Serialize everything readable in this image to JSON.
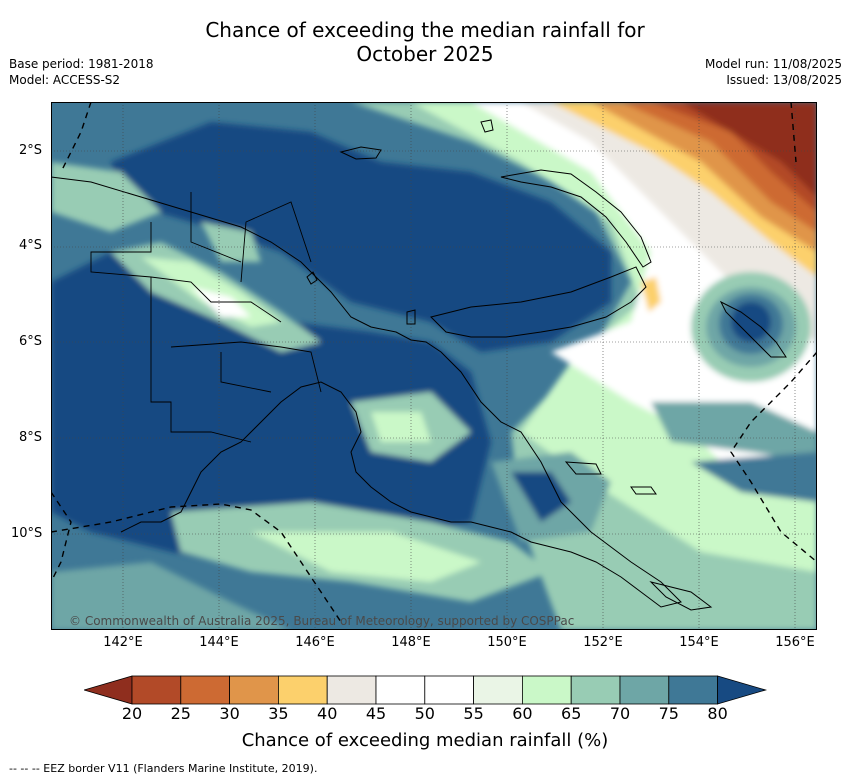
{
  "title_line1": "Chance of exceeding the median rainfall for",
  "title_line2": "October 2025",
  "meta_left": {
    "base_period": "Base period: 1981-2018",
    "model": "Model: ACCESS-S2"
  },
  "meta_right": {
    "model_run": "Model run: 11/08/2025",
    "issued": "Issued: 13/08/2025"
  },
  "lat_labels": [
    "2°S",
    "4°S",
    "6°S",
    "8°S",
    "10°S"
  ],
  "lon_labels": [
    "142°E",
    "144°E",
    "146°E",
    "148°E",
    "150°E",
    "152°E",
    "154°E",
    "156°E"
  ],
  "copyright": "© Commonwealth of Australia 2025, Bureau of Meteorology, supported by COSPPac",
  "colorbar": {
    "ticks": [
      "20",
      "25",
      "30",
      "35",
      "40",
      "45",
      "50",
      "55",
      "60",
      "65",
      "70",
      "75",
      "80"
    ],
    "colors": [
      "#8f2e1e",
      "#b24a28",
      "#cd6a33",
      "#e0954a",
      "#fcd06c",
      "#ede9e3",
      "#ffffff",
      "#ffffff",
      "#eaf5e6",
      "#caf8c8",
      "#98ccb4",
      "#6ea6a6",
      "#3f7896",
      "#174a82"
    ],
    "title": "Chance of exceeding median rainfall (%)"
  },
  "footnote": "--  --  -- EEZ border V11 (Flanders Marine Institute, 2019)."
}
